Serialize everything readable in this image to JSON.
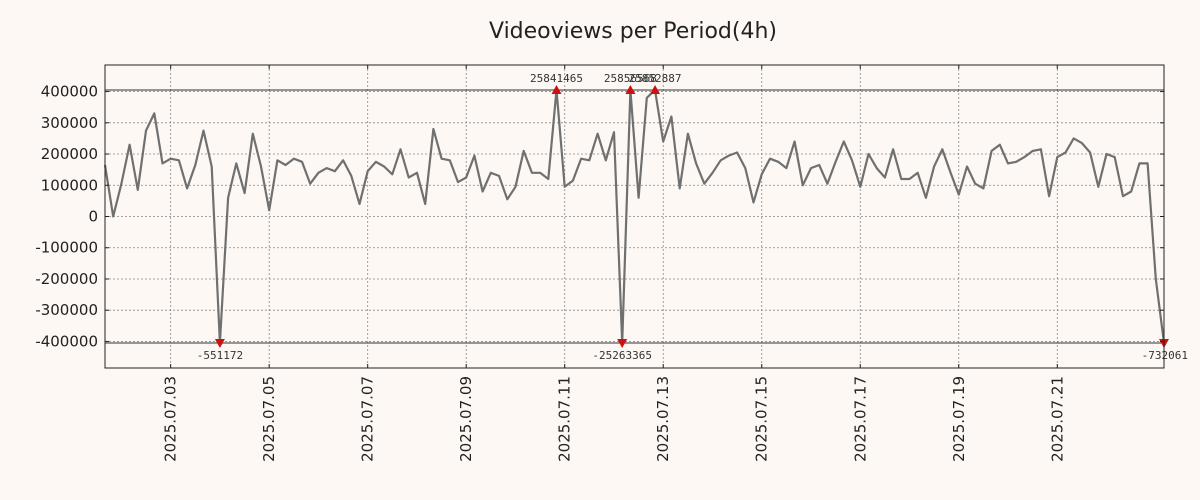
{
  "chart_data": {
    "type": "line",
    "title": "Videoviews per Period(4h)",
    "xlabel": "",
    "ylabel": "",
    "x_range": [
      "2025-07-01 16:00",
      "2025-07-22 20:00"
    ],
    "ylim": [
      -485000,
      485000
    ],
    "y_ticks": [
      400000,
      300000,
      200000,
      100000,
      0,
      -100000,
      -200000,
      -300000,
      -400000
    ],
    "y_tick_labels": [
      "400000",
      "300000",
      "200000",
      "100000",
      "0",
      "-100000",
      "-200000",
      "-300000",
      "-400000"
    ],
    "x_ticks": [
      "2025.07.03",
      "2025.07.05",
      "2025.07.07",
      "2025.07.09",
      "2025.07.11",
      "2025.07.13",
      "2025.07.15",
      "2025.07.17",
      "2025.07.19",
      "2025.07.21"
    ],
    "clip_levels": {
      "upper": 405000,
      "lower": -405000
    },
    "grid": true,
    "series": [
      {
        "color": "#707070",
        "points": [
          [
            "2025-07-01 16:00",
            165000
          ],
          [
            "2025-07-01 20:00",
            0
          ],
          [
            "2025-07-02 00:00",
            105000
          ],
          [
            "2025-07-02 04:00",
            230000
          ],
          [
            "2025-07-02 08:00",
            85000
          ],
          [
            "2025-07-02 12:00",
            275000
          ],
          [
            "2025-07-02 16:00",
            330000
          ],
          [
            "2025-07-02 20:00",
            170000
          ],
          [
            "2025-07-03 00:00",
            185000
          ],
          [
            "2025-07-03 04:00",
            180000
          ],
          [
            "2025-07-03 08:00",
            90000
          ],
          [
            "2025-07-03 12:00",
            165000
          ],
          [
            "2025-07-03 16:00",
            275000
          ],
          [
            "2025-07-03 20:00",
            160000
          ],
          [
            "2025-07-04 00:00",
            -405000
          ],
          [
            "2025-07-04 04:00",
            60000
          ],
          [
            "2025-07-04 08:00",
            170000
          ],
          [
            "2025-07-04 12:00",
            75000
          ],
          [
            "2025-07-04 16:00",
            265000
          ],
          [
            "2025-07-04 20:00",
            160000
          ],
          [
            "2025-07-05 00:00",
            20000
          ],
          [
            "2025-07-05 04:00",
            180000
          ],
          [
            "2025-07-05 08:00",
            165000
          ],
          [
            "2025-07-05 12:00",
            185000
          ],
          [
            "2025-07-05 16:00",
            175000
          ],
          [
            "2025-07-05 20:00",
            105000
          ],
          [
            "2025-07-06 00:00",
            140000
          ],
          [
            "2025-07-06 04:00",
            155000
          ],
          [
            "2025-07-06 08:00",
            145000
          ],
          [
            "2025-07-06 12:00",
            180000
          ],
          [
            "2025-07-06 16:00",
            130000
          ],
          [
            "2025-07-06 20:00",
            40000
          ],
          [
            "2025-07-07 00:00",
            145000
          ],
          [
            "2025-07-07 04:00",
            175000
          ],
          [
            "2025-07-07 08:00",
            160000
          ],
          [
            "2025-07-07 12:00",
            135000
          ],
          [
            "2025-07-07 16:00",
            215000
          ],
          [
            "2025-07-07 20:00",
            125000
          ],
          [
            "2025-07-08 00:00",
            140000
          ],
          [
            "2025-07-08 04:00",
            40000
          ],
          [
            "2025-07-08 08:00",
            280000
          ],
          [
            "2025-07-08 12:00",
            185000
          ],
          [
            "2025-07-08 16:00",
            180000
          ],
          [
            "2025-07-08 20:00",
            110000
          ],
          [
            "2025-07-09 00:00",
            125000
          ],
          [
            "2025-07-09 04:00",
            195000
          ],
          [
            "2025-07-09 08:00",
            80000
          ],
          [
            "2025-07-09 12:00",
            140000
          ],
          [
            "2025-07-09 16:00",
            130000
          ],
          [
            "2025-07-09 20:00",
            55000
          ],
          [
            "2025-07-10 00:00",
            95000
          ],
          [
            "2025-07-10 04:00",
            210000
          ],
          [
            "2025-07-10 08:00",
            140000
          ],
          [
            "2025-07-10 12:00",
            140000
          ],
          [
            "2025-07-10 16:00",
            120000
          ],
          [
            "2025-07-10 20:00",
            405000
          ],
          [
            "2025-07-11 00:00",
            95000
          ],
          [
            "2025-07-11 04:00",
            115000
          ],
          [
            "2025-07-11 08:00",
            185000
          ],
          [
            "2025-07-11 12:00",
            180000
          ],
          [
            "2025-07-11 16:00",
            265000
          ],
          [
            "2025-07-11 20:00",
            180000
          ],
          [
            "2025-07-12 00:00",
            270000
          ],
          [
            "2025-07-12 04:00",
            -405000
          ],
          [
            "2025-07-12 08:00",
            405000
          ],
          [
            "2025-07-12 12:00",
            60000
          ],
          [
            "2025-07-12 16:00",
            380000
          ],
          [
            "2025-07-12 20:00",
            405000
          ],
          [
            "2025-07-13 00:00",
            240000
          ],
          [
            "2025-07-13 04:00",
            320000
          ],
          [
            "2025-07-13 08:00",
            90000
          ],
          [
            "2025-07-13 12:00",
            265000
          ],
          [
            "2025-07-13 16:00",
            170000
          ],
          [
            "2025-07-13 20:00",
            105000
          ],
          [
            "2025-07-14 00:00",
            140000
          ],
          [
            "2025-07-14 04:00",
            180000
          ],
          [
            "2025-07-14 08:00",
            195000
          ],
          [
            "2025-07-14 12:00",
            205000
          ],
          [
            "2025-07-14 16:00",
            155000
          ],
          [
            "2025-07-14 20:00",
            45000
          ],
          [
            "2025-07-15 00:00",
            135000
          ],
          [
            "2025-07-15 04:00",
            185000
          ],
          [
            "2025-07-15 08:00",
            175000
          ],
          [
            "2025-07-15 12:00",
            155000
          ],
          [
            "2025-07-15 16:00",
            240000
          ],
          [
            "2025-07-15 20:00",
            100000
          ],
          [
            "2025-07-16 00:00",
            155000
          ],
          [
            "2025-07-16 04:00",
            165000
          ],
          [
            "2025-07-16 08:00",
            105000
          ],
          [
            "2025-07-16 12:00",
            175000
          ],
          [
            "2025-07-16 16:00",
            240000
          ],
          [
            "2025-07-16 20:00",
            180000
          ],
          [
            "2025-07-17 00:00",
            95000
          ],
          [
            "2025-07-17 04:00",
            200000
          ],
          [
            "2025-07-17 08:00",
            155000
          ],
          [
            "2025-07-17 12:00",
            125000
          ],
          [
            "2025-07-17 16:00",
            215000
          ],
          [
            "2025-07-17 20:00",
            120000
          ],
          [
            "2025-07-18 00:00",
            120000
          ],
          [
            "2025-07-18 04:00",
            140000
          ],
          [
            "2025-07-18 08:00",
            60000
          ],
          [
            "2025-07-18 12:00",
            160000
          ],
          [
            "2025-07-18 16:00",
            215000
          ],
          [
            "2025-07-18 20:00",
            140000
          ],
          [
            "2025-07-19 00:00",
            70000
          ],
          [
            "2025-07-19 04:00",
            160000
          ],
          [
            "2025-07-19 08:00",
            105000
          ],
          [
            "2025-07-19 12:00",
            90000
          ],
          [
            "2025-07-19 16:00",
            210000
          ],
          [
            "2025-07-19 20:00",
            230000
          ],
          [
            "2025-07-20 00:00",
            170000
          ],
          [
            "2025-07-20 04:00",
            175000
          ],
          [
            "2025-07-20 08:00",
            190000
          ],
          [
            "2025-07-20 12:00",
            210000
          ],
          [
            "2025-07-20 16:00",
            215000
          ],
          [
            "2025-07-20 20:00",
            65000
          ],
          [
            "2025-07-21 00:00",
            190000
          ],
          [
            "2025-07-21 04:00",
            205000
          ],
          [
            "2025-07-21 08:00",
            250000
          ],
          [
            "2025-07-21 12:00",
            235000
          ],
          [
            "2025-07-21 16:00",
            205000
          ],
          [
            "2025-07-21 20:00",
            95000
          ],
          [
            "2025-07-22 00:00",
            200000
          ],
          [
            "2025-07-22 04:00",
            190000
          ],
          [
            "2025-07-22 08:00",
            65000
          ],
          [
            "2025-07-22 12:00",
            80000
          ],
          [
            "2025-07-22 16:00",
            170000
          ],
          [
            "2025-07-22 20:00",
            170000
          ],
          [
            "2025-07-23 00:00",
            -200000
          ],
          [
            "2025-07-23 04:00",
            -405000
          ]
        ]
      }
    ],
    "outlier_markers": [
      {
        "x": "2025-07-04 00:00",
        "y": -405000,
        "direction": "down",
        "label": "-551172"
      },
      {
        "x": "2025-07-10 20:00",
        "y": 405000,
        "direction": "up",
        "label": "25841465"
      },
      {
        "x": "2025-07-12 04:00",
        "y": -405000,
        "direction": "down",
        "label": "-25263365"
      },
      {
        "x": "2025-07-12 08:00",
        "y": 405000,
        "direction": "up",
        "label": "25856568"
      },
      {
        "x": "2025-07-12 20:00",
        "y": 405000,
        "direction": "up",
        "label": "25852887"
      },
      {
        "x": "2025-07-23 04:00",
        "y": -405000,
        "direction": "down",
        "label": "-732061"
      }
    ],
    "colors": {
      "line": "#707070",
      "marker": "#cc1111",
      "background": "#fdf8f4",
      "plot_background": "#fdf8f4"
    }
  }
}
